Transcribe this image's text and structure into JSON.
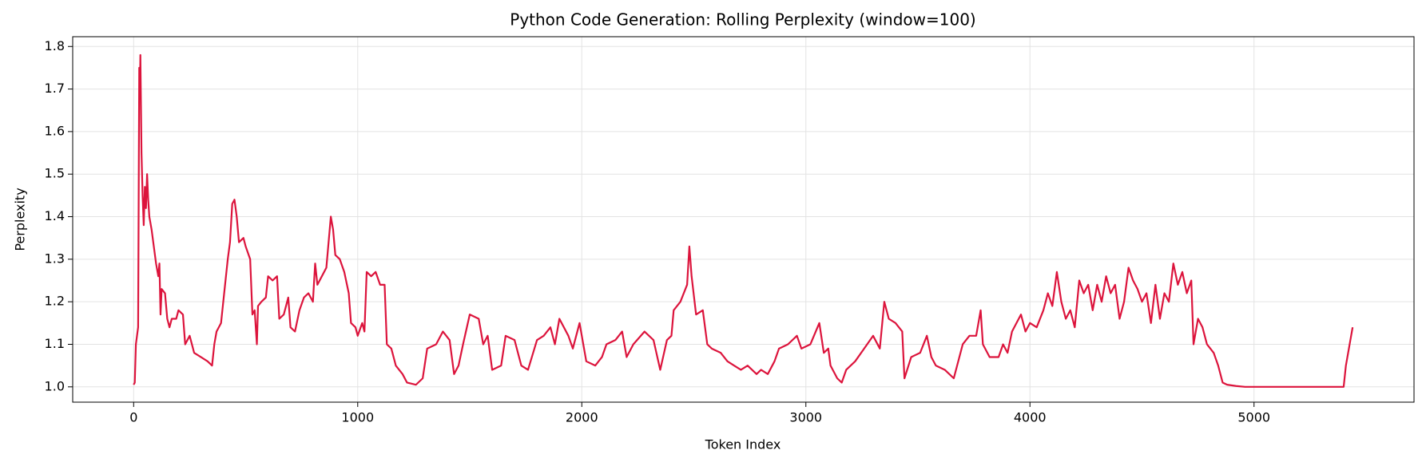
{
  "chart_data": {
    "type": "line",
    "title": "Python Code Generation: Rolling Perplexity (window=100)",
    "x_label": "Token Index",
    "y_label": "Perplexity",
    "color": "#dc143c",
    "grid": true,
    "xlim": [
      -272,
      5714
    ],
    "ylim": [
      0.964,
      1.823
    ],
    "xticks": [
      0,
      1000,
      2000,
      3000,
      4000,
      5000
    ],
    "yticks": [
      {
        "value": 1,
        "label": "1.0"
      },
      1.1,
      1.2,
      1.3,
      1.4,
      1.5,
      1.6,
      1.7,
      1.8
    ],
    "x": [
      0,
      5,
      10,
      15,
      20,
      25,
      28,
      30,
      35,
      40,
      45,
      50,
      55,
      60,
      65,
      70,
      80,
      90,
      100,
      110,
      115,
      120,
      125,
      140,
      150,
      160,
      170,
      190,
      200,
      220,
      230,
      250,
      270,
      300,
      330,
      350,
      360,
      370,
      390,
      400,
      420,
      430,
      440,
      450,
      460,
      470,
      490,
      500,
      520,
      530,
      540,
      550,
      555,
      570,
      590,
      600,
      620,
      640,
      650,
      670,
      690,
      700,
      720,
      740,
      760,
      780,
      800,
      810,
      820,
      840,
      860,
      880,
      890,
      900,
      920,
      940,
      960,
      970,
      990,
      1000,
      1020,
      1030,
      1040,
      1060,
      1080,
      1100,
      1120,
      1130,
      1150,
      1170,
      1200,
      1220,
      1260,
      1290,
      1310,
      1350,
      1380,
      1410,
      1430,
      1450,
      1470,
      1500,
      1540,
      1560,
      1580,
      1600,
      1640,
      1660,
      1700,
      1730,
      1760,
      1800,
      1830,
      1860,
      1880,
      1900,
      1940,
      1960,
      1990,
      2020,
      2060,
      2090,
      2110,
      2150,
      2180,
      2200,
      2230,
      2280,
      2320,
      2350,
      2380,
      2400,
      2410,
      2440,
      2470,
      2480,
      2490,
      2510,
      2540,
      2560,
      2580,
      2620,
      2650,
      2680,
      2710,
      2740,
      2780,
      2800,
      2830,
      2860,
      2880,
      2920,
      2960,
      2980,
      3020,
      3060,
      3080,
      3100,
      3110,
      3140,
      3160,
      3180,
      3220,
      3260,
      3300,
      3330,
      3350,
      3370,
      3400,
      3430,
      3440,
      3470,
      3510,
      3540,
      3560,
      3580,
      3620,
      3660,
      3700,
      3730,
      3760,
      3780,
      3790,
      3820,
      3860,
      3880,
      3900,
      3920,
      3960,
      3980,
      4000,
      4030,
      4060,
      4080,
      4100,
      4120,
      4140,
      4160,
      4180,
      4200,
      4220,
      4240,
      4260,
      4280,
      4300,
      4320,
      4340,
      4360,
      4380,
      4400,
      4420,
      4440,
      4460,
      4480,
      4500,
      4520,
      4540,
      4560,
      4580,
      4600,
      4620,
      4640,
      4660,
      4680,
      4700,
      4720,
      4730,
      4750,
      4770,
      4790,
      4820,
      4840,
      4860,
      4880,
      4920,
      4960,
      5000,
      5200,
      5400,
      5410,
      5420,
      5430,
      5440
    ],
    "values": [
      1.005,
      1.01,
      1.1,
      1.12,
      1.14,
      1.75,
      1.7,
      1.78,
      1.55,
      1.45,
      1.38,
      1.47,
      1.42,
      1.5,
      1.44,
      1.4,
      1.37,
      1.33,
      1.29,
      1.26,
      1.29,
      1.17,
      1.23,
      1.22,
      1.16,
      1.14,
      1.16,
      1.16,
      1.18,
      1.17,
      1.1,
      1.12,
      1.08,
      1.07,
      1.06,
      1.05,
      1.1,
      1.13,
      1.15,
      1.2,
      1.3,
      1.34,
      1.43,
      1.44,
      1.4,
      1.34,
      1.35,
      1.33,
      1.3,
      1.17,
      1.18,
      1.1,
      1.19,
      1.2,
      1.21,
      1.26,
      1.25,
      1.26,
      1.16,
      1.17,
      1.21,
      1.14,
      1.13,
      1.18,
      1.21,
      1.22,
      1.2,
      1.29,
      1.24,
      1.26,
      1.28,
      1.4,
      1.37,
      1.31,
      1.3,
      1.27,
      1.22,
      1.15,
      1.14,
      1.12,
      1.15,
      1.13,
      1.27,
      1.26,
      1.27,
      1.24,
      1.24,
      1.1,
      1.09,
      1.05,
      1.03,
      1.01,
      1.005,
      1.02,
      1.09,
      1.1,
      1.13,
      1.11,
      1.03,
      1.05,
      1.1,
      1.17,
      1.16,
      1.1,
      1.12,
      1.04,
      1.05,
      1.12,
      1.11,
      1.05,
      1.04,
      1.11,
      1.12,
      1.14,
      1.1,
      1.16,
      1.12,
      1.09,
      1.15,
      1.06,
      1.05,
      1.07,
      1.1,
      1.11,
      1.13,
      1.07,
      1.1,
      1.13,
      1.11,
      1.04,
      1.11,
      1.12,
      1.18,
      1.2,
      1.24,
      1.33,
      1.26,
      1.17,
      1.18,
      1.1,
      1.09,
      1.08,
      1.06,
      1.05,
      1.04,
      1.05,
      1.03,
      1.04,
      1.03,
      1.06,
      1.09,
      1.1,
      1.12,
      1.09,
      1.1,
      1.15,
      1.08,
      1.09,
      1.05,
      1.02,
      1.01,
      1.04,
      1.06,
      1.09,
      1.12,
      1.09,
      1.2,
      1.16,
      1.15,
      1.13,
      1.02,
      1.07,
      1.08,
      1.12,
      1.07,
      1.05,
      1.04,
      1.02,
      1.1,
      1.12,
      1.12,
      1.18,
      1.1,
      1.07,
      1.07,
      1.1,
      1.08,
      1.13,
      1.17,
      1.13,
      1.15,
      1.14,
      1.18,
      1.22,
      1.19,
      1.27,
      1.2,
      1.16,
      1.18,
      1.14,
      1.25,
      1.22,
      1.24,
      1.18,
      1.24,
      1.2,
      1.26,
      1.22,
      1.24,
      1.16,
      1.2,
      1.28,
      1.25,
      1.23,
      1.2,
      1.22,
      1.15,
      1.24,
      1.16,
      1.22,
      1.2,
      1.29,
      1.24,
      1.27,
      1.22,
      1.25,
      1.1,
      1.16,
      1.14,
      1.1,
      1.08,
      1.05,
      1.01,
      1.005,
      1.002,
      1.0,
      1.0,
      1.0,
      1.0,
      1.05,
      1.08,
      1.11,
      1.14
    ]
  }
}
